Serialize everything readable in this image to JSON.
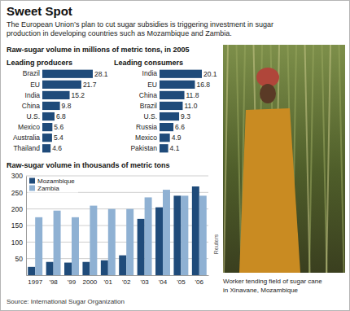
{
  "page": {
    "title": "Sweet Spot",
    "subtitle": [
      "The European Union’s plan to cut sugar subsidies is triggering investment in sugar",
      "production in developing countries such as Mozambique and Zambia."
    ],
    "heading": "Raw-sugar volume in millions of metric tons, in 2005",
    "source": "Source: International Sugar Organization",
    "photo": {
      "caption": [
        "Worker tending field of sugar cane",
        "in Xinavane, Mozambique"
      ],
      "credit": "Reuters"
    }
  },
  "chart_data": [
    {
      "type": "bar",
      "orientation": "horizontal",
      "title": "Leading producers",
      "categories": [
        "Brazil",
        "EU",
        "India",
        "China",
        "U.S.",
        "Mexico",
        "Australia",
        "Thailand"
      ],
      "values": [
        28.1,
        21.7,
        15.2,
        9.8,
        6.8,
        5.6,
        5.4,
        4.6
      ],
      "color": "#1f4b7a",
      "xlim": [
        0,
        28.1
      ],
      "data_labels": true,
      "tick_labels": "y"
    },
    {
      "type": "bar",
      "orientation": "horizontal",
      "title": "Leading consumers",
      "categories": [
        "India",
        "EU",
        "China",
        "Brazil",
        "U.S.",
        "Russia",
        "Mexico",
        "Pakistan"
      ],
      "values": [
        20.1,
        16.8,
        11.8,
        11.0,
        9.3,
        6.6,
        4.9,
        4.1
      ],
      "value_labels": [
        "20.1",
        "16.8",
        "11.8",
        "11.0",
        "9.3",
        "6.6",
        "4.9",
        "4.1"
      ],
      "color": "#1f4b7a",
      "xlim": [
        0,
        20.1
      ],
      "data_labels": true,
      "tick_labels": "y"
    },
    {
      "type": "bar",
      "title": "Raw-sugar volume in thousands of metric tons",
      "categories": [
        "1997",
        "'98",
        "'99",
        "2000",
        "'01",
        "'02",
        "'03",
        "'04",
        "'05",
        "'06"
      ],
      "series": [
        {
          "name": "Mozambique",
          "color": "#1f4b7a",
          "values": [
            25,
            40,
            38,
            40,
            45,
            60,
            170,
            205,
            240,
            268
          ]
        },
        {
          "name": "Zambia",
          "color": "#8fb1d3",
          "values": [
            175,
            195,
            175,
            210,
            200,
            200,
            235,
            258,
            240,
            240
          ]
        }
      ],
      "ylim": [
        0,
        300
      ],
      "yticks": [
        50,
        100,
        150,
        200,
        250,
        300
      ],
      "grid": true,
      "legend": "upper left"
    }
  ]
}
